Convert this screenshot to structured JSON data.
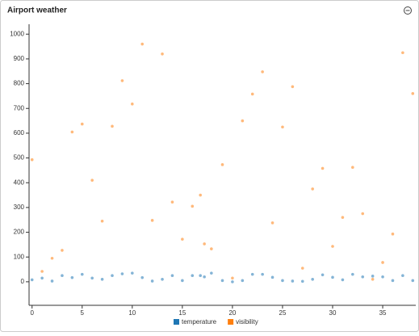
{
  "chart_data": {
    "type": "scatter",
    "title": "Airport weather",
    "x": [
      0,
      1,
      2,
      3,
      4,
      5,
      6,
      7,
      8,
      9,
      10,
      11,
      12,
      13,
      14,
      15,
      16,
      16.8,
      17.2,
      17.9,
      19,
      20,
      21,
      22,
      23,
      24,
      25,
      26,
      27,
      28,
      29,
      30,
      31,
      32,
      33,
      34,
      35,
      36,
      37,
      38
    ],
    "series": [
      {
        "name": "temperature",
        "color": "#1f77b4",
        "values": [
          8,
          15,
          3,
          25,
          17,
          30,
          15,
          10,
          25,
          32,
          35,
          17,
          3,
          10,
          25,
          5,
          25,
          25,
          20,
          35,
          5,
          0,
          5,
          30,
          30,
          18,
          5,
          3,
          2,
          10,
          28,
          18,
          8,
          30,
          20,
          23,
          20,
          5,
          25,
          5
        ]
      },
      {
        "name": "visibility",
        "color": "#ff7f0e",
        "values": [
          493,
          42,
          95,
          127,
          605,
          637,
          410,
          245,
          628,
          812,
          718,
          960,
          248,
          920,
          322,
          172,
          305,
          350,
          153,
          133,
          473,
          15,
          650,
          758,
          848,
          238,
          625,
          788,
          55,
          375,
          458,
          143,
          260,
          462,
          275,
          10,
          78,
          193,
          925,
          760
        ]
      }
    ],
    "xlim": [
      -0.3,
      38.3
    ],
    "xticks": [
      0,
      5,
      10,
      15,
      20,
      25,
      30,
      35
    ],
    "ylim": [
      -95,
      1040
    ],
    "yticks": [
      0,
      100,
      200,
      300,
      400,
      500,
      600,
      700,
      800,
      900,
      1000
    ],
    "legend": "bottom"
  }
}
